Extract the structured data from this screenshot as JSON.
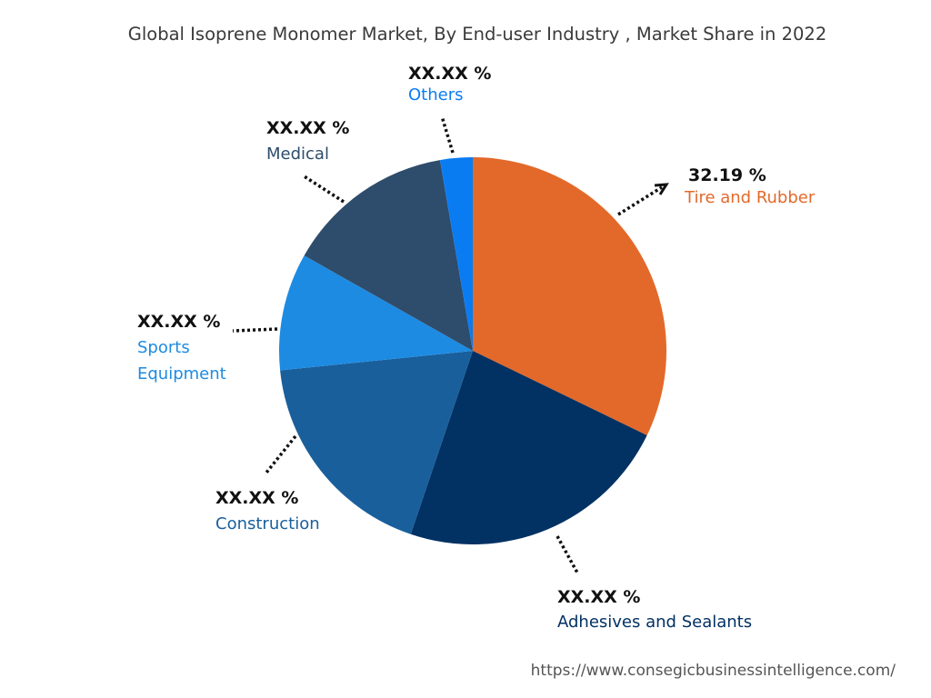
{
  "chart_data": {
    "type": "pie",
    "title": "Global Isoprene Monomer Market, By End-user Industry , Market Share in 2022",
    "slices": [
      {
        "category": "Tire and Rubber",
        "value": 32.19,
        "label": "32.19 %",
        "color": "#E3692A"
      },
      {
        "category": "Adhesives and Sealants",
        "value": 23.0,
        "label": "XX.XX %",
        "color": "#023163"
      },
      {
        "category": "Construction",
        "value": 18.2,
        "label": "XX.XX %",
        "color": "#195F9C"
      },
      {
        "category": "Sports Equipment",
        "value": 9.8,
        "label": "XX.XX %",
        "color": "#1D8BE2"
      },
      {
        "category": "Medical",
        "value": 14.1,
        "label": "XX.XX %",
        "color": "#2E4C6B"
      },
      {
        "category": "Others",
        "value": 2.71,
        "label": "XX.XX %",
        "color": "#0A7CF2"
      }
    ],
    "start_angle": "12 o'clock",
    "direction": "clockwise",
    "legend": "none",
    "source": "https://www.consegicbusinessintelligence.com/"
  }
}
